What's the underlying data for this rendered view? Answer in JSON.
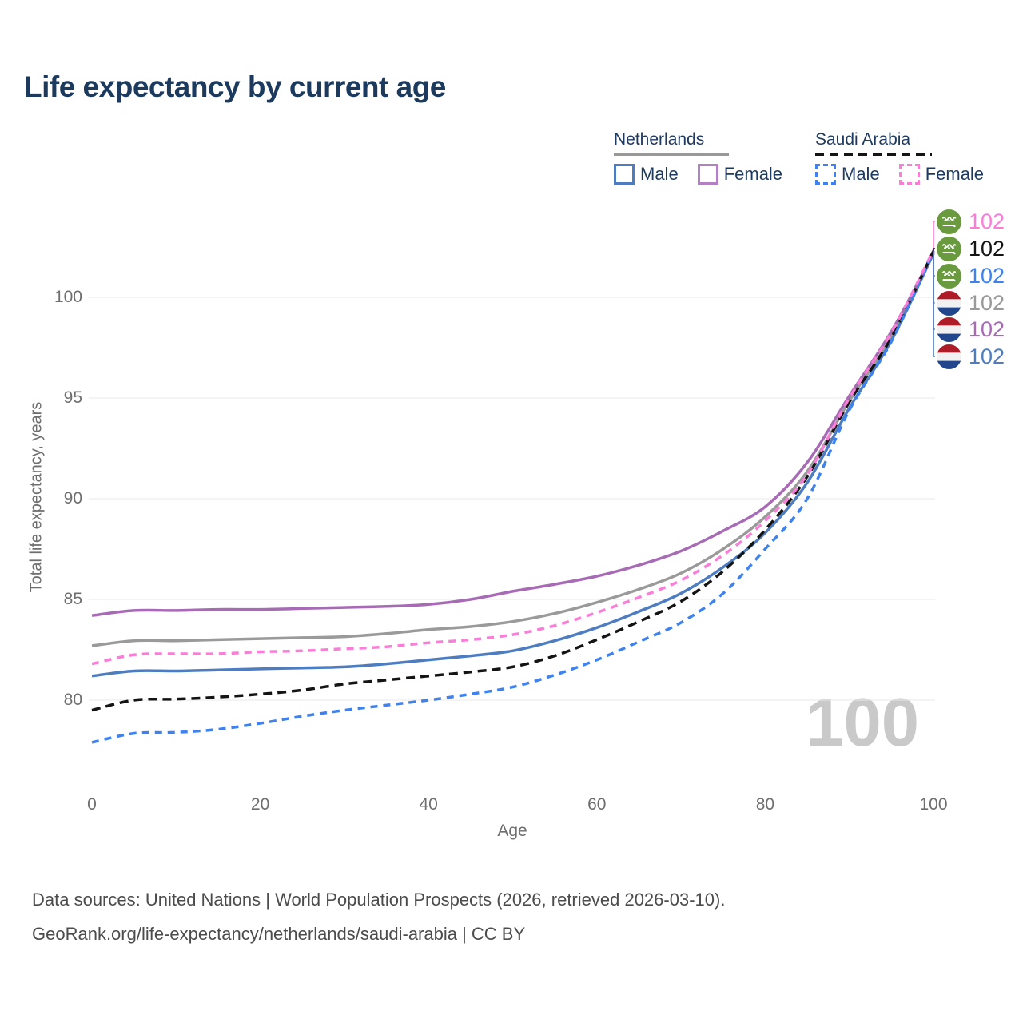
{
  "title": "Life expectancy by current age",
  "watermark": "100",
  "legend": {
    "groups": [
      {
        "label": "Netherlands",
        "line_color": "#999999",
        "line_style": "solid",
        "items": [
          {
            "label": "Male",
            "color": "#4d7dc0",
            "dash": false
          },
          {
            "label": "Female",
            "color": "#b57fc3",
            "dash": false
          }
        ]
      },
      {
        "label": "Saudi Arabia",
        "line_color": "#141414",
        "line_style": "dashed",
        "items": [
          {
            "label": "Male",
            "color": "#3e82f0",
            "dash": true
          },
          {
            "label": "Female",
            "color": "#fa7dd7",
            "dash": true
          }
        ]
      }
    ]
  },
  "footer": {
    "line1": "Data sources: United Nations | World Population Prospects (2026, retrieved 2026-03-10).",
    "line2": "GeoRank.org/life-expectancy/netherlands/saudi-arabia | CC BY"
  },
  "chart_data": {
    "type": "line",
    "title": "Life expectancy by current age",
    "xlabel": "Age",
    "ylabel": "Total life expectancy, years",
    "x_ticks": [
      0,
      20,
      40,
      60,
      80,
      100
    ],
    "y_ticks": [
      80,
      85,
      90,
      95,
      100
    ],
    "xlim": [
      0,
      100
    ],
    "ylim": [
      77.5,
      102.5
    ],
    "grid": "horizontal",
    "legend_position": "top-right",
    "current_age_cursor": 100,
    "x": [
      0,
      5,
      10,
      15,
      20,
      25,
      30,
      35,
      40,
      45,
      50,
      55,
      60,
      65,
      70,
      75,
      80,
      85,
      90,
      95,
      100
    ],
    "series": [
      {
        "key": "nl_all",
        "name": "Netherlands (all)",
        "country": "nl",
        "color": "#9a9a9a",
        "dasharray": "",
        "end_label": "102",
        "values": [
          82.7,
          82.95,
          82.95,
          83.0,
          83.05,
          83.1,
          83.15,
          83.3,
          83.5,
          83.65,
          83.9,
          84.3,
          84.85,
          85.5,
          86.3,
          87.5,
          89.1,
          91.35,
          94.85,
          98.05,
          102.24
        ]
      },
      {
        "key": "nl_male",
        "name": "Netherlands Male",
        "country": "nl",
        "color": "#4d7dc0",
        "dasharray": "",
        "end_label": "102",
        "values": [
          81.2,
          81.45,
          81.45,
          81.5,
          81.55,
          81.6,
          81.65,
          81.8,
          82.0,
          82.2,
          82.45,
          82.95,
          83.6,
          84.4,
          85.3,
          86.6,
          88.3,
          90.8,
          94.5,
          97.85,
          102.18
        ]
      },
      {
        "key": "nl_female",
        "name": "Netherlands Female",
        "country": "nl",
        "color": "#a76ab5",
        "dasharray": "",
        "end_label": "102",
        "values": [
          84.2,
          84.45,
          84.45,
          84.5,
          84.5,
          84.55,
          84.6,
          84.65,
          84.75,
          85.0,
          85.4,
          85.75,
          86.15,
          86.7,
          87.4,
          88.4,
          89.6,
          91.8,
          95.1,
          98.3,
          102.21
        ]
      },
      {
        "key": "sa_all",
        "name": "Saudi Arabia (all)",
        "country": "sa",
        "color": "#141414",
        "dasharray": "11 7",
        "end_label": "102",
        "values": [
          79.5,
          80.0,
          80.05,
          80.15,
          80.3,
          80.5,
          80.8,
          81.0,
          81.2,
          81.4,
          81.65,
          82.2,
          83.0,
          83.9,
          84.9,
          86.4,
          88.45,
          91.1,
          94.8,
          98.0,
          102.3
        ]
      },
      {
        "key": "sa_male",
        "name": "Saudi Arabia Male",
        "country": "sa",
        "color": "#3e82f0",
        "dasharray": "9 7",
        "end_label": "102",
        "values": [
          77.9,
          78.35,
          78.4,
          78.55,
          78.85,
          79.2,
          79.5,
          79.75,
          80.0,
          80.3,
          80.65,
          81.25,
          82.0,
          82.9,
          83.85,
          85.3,
          87.5,
          90.0,
          94.4,
          97.8,
          102.27
        ]
      },
      {
        "key": "sa_female",
        "name": "Saudi Arabia Female",
        "country": "sa",
        "color": "#fa7dd7",
        "dasharray": "9 7",
        "end_label": "102",
        "values": [
          81.8,
          82.25,
          82.3,
          82.3,
          82.4,
          82.45,
          82.55,
          82.65,
          82.85,
          83.0,
          83.25,
          83.7,
          84.35,
          85.1,
          85.95,
          87.2,
          88.9,
          91.2,
          95.0,
          98.25,
          102.34
        ]
      }
    ],
    "end_labels": [
      {
        "series": "sa_female",
        "flag": "sa",
        "text": "102",
        "row_y": 277
      },
      {
        "series": "sa_all",
        "flag": "sa",
        "text": "102",
        "row_y": 311
      },
      {
        "series": "sa_male",
        "flag": "sa",
        "text": "102",
        "row_y": 345
      },
      {
        "series": "nl_all",
        "flag": "nl",
        "text": "102",
        "row_y": 379
      },
      {
        "series": "nl_female",
        "flag": "nl",
        "text": "102",
        "row_y": 412
      },
      {
        "series": "nl_male",
        "flag": "nl",
        "text": "102",
        "row_y": 446
      }
    ]
  }
}
